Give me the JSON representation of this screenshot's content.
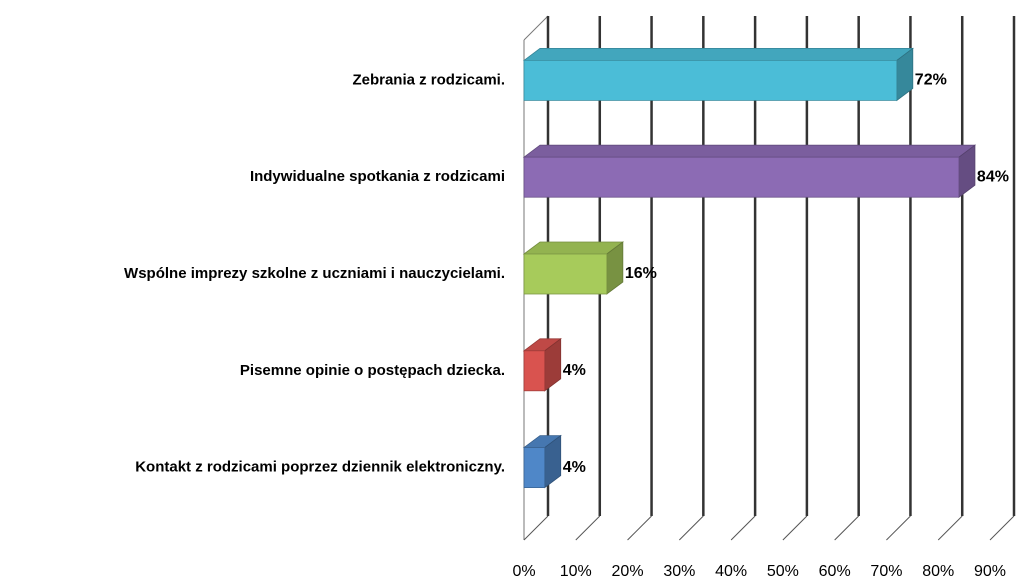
{
  "chart_data": {
    "type": "bar",
    "orientation": "horizontal",
    "categories": [
      "Zebrania z rodzicami.",
      "Indywidualne spotkania z rodzicami",
      "Wspólne imprezy szkolne z uczniami i nauczycielami.",
      "Pisemne opinie o postępach dziecka.",
      "Kontakt z rodzicami poprzez dziennik elektroniczny."
    ],
    "values": [
      72,
      84,
      16,
      4,
      4
    ],
    "value_labels": [
      "72%",
      "84%",
      "16%",
      "4%",
      "4%"
    ],
    "colors": [
      "#4bbdd7",
      "#8c6bb4",
      "#a7cb5b",
      "#d9534f",
      "#4f87c8"
    ],
    "xlim": [
      0,
      90
    ],
    "xticks": [
      {
        "value": 0,
        "label": "0%"
      },
      {
        "value": 10,
        "label": "10%"
      },
      {
        "value": 20,
        "label": "20%"
      },
      {
        "value": 30,
        "label": "30%"
      },
      {
        "value": 40,
        "label": "40%"
      },
      {
        "value": 50,
        "label": "50%"
      },
      {
        "value": 60,
        "label": "60%"
      },
      {
        "value": 70,
        "label": "70%"
      },
      {
        "value": 80,
        "label": "80%"
      },
      {
        "value": 90,
        "label": "90%"
      }
    ],
    "grid": true
  }
}
